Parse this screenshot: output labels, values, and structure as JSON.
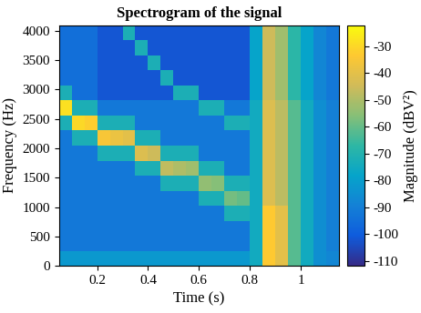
{
  "chart_data": {
    "type": "heatmap",
    "title": "Spectrogram of the signal",
    "x_label": "Time (s)",
    "y_label": "Frequency (Hz)",
    "x": [
      0.05,
      0.1,
      0.15,
      0.2,
      0.25,
      0.3,
      0.35,
      0.4,
      0.45,
      0.5,
      0.55,
      0.6,
      0.65,
      0.7,
      0.75,
      0.8,
      0.85,
      0.9,
      0.95,
      1.0,
      1.05,
      1.1,
      1.15
    ],
    "y": [
      0,
      256,
      512,
      768,
      1024,
      1280,
      1536,
      1792,
      2048,
      2304,
      2560,
      2816,
      3072,
      3328,
      3584,
      3840,
      4096
    ],
    "xlim": [
      0.05,
      1.15
    ],
    "ylim": [
      0,
      4096
    ],
    "xticks": [
      0.2,
      0.4,
      0.6,
      0.8,
      1
    ],
    "yticks": [
      0,
      500,
      1000,
      1500,
      2000,
      2500,
      3000,
      3500,
      4000
    ],
    "cells": [
      [
        -82,
        -82,
        -82,
        -82,
        -82,
        -82,
        -82,
        -82,
        -82,
        -82,
        -82,
        -82,
        -82,
        -82,
        -82,
        -75,
        -33,
        -40,
        -62,
        -75,
        -85,
        -88
      ],
      [
        -92,
        -92,
        -92,
        -92,
        -92,
        -92,
        -92,
        -92,
        -92,
        -92,
        -92,
        -92,
        -92,
        -92,
        -92,
        -75,
        -33,
        -40,
        -62,
        -75,
        -85,
        -90
      ],
      [
        -92,
        -92,
        -92,
        -92,
        -92,
        -92,
        -92,
        -92,
        -92,
        -92,
        -92,
        -92,
        -92,
        -92,
        -92,
        -75,
        -33,
        -40,
        -62,
        -75,
        -85,
        -90
      ],
      [
        -92,
        -92,
        -92,
        -92,
        -92,
        -92,
        -92,
        -92,
        -92,
        -92,
        -92,
        -92,
        -92,
        -72,
        -72,
        -75,
        -33,
        -40,
        -62,
        -75,
        -85,
        -90
      ],
      [
        -92,
        -92,
        -92,
        -92,
        -92,
        -92,
        -92,
        -92,
        -92,
        -92,
        -92,
        -72,
        -72,
        -58,
        -60,
        -75,
        -42,
        -48,
        -62,
        -75,
        -85,
        -90
      ],
      [
        -92,
        -92,
        -92,
        -92,
        -92,
        -92,
        -92,
        -92,
        -72,
        -72,
        -72,
        -54,
        -56,
        -72,
        -72,
        -75,
        -42,
        -48,
        -62,
        -75,
        -85,
        -90
      ],
      [
        -92,
        -92,
        -92,
        -92,
        -92,
        -92,
        -72,
        -72,
        -47,
        -50,
        -52,
        -72,
        -72,
        -92,
        -92,
        -75,
        -42,
        -48,
        -62,
        -75,
        -85,
        -90
      ],
      [
        -92,
        -92,
        -92,
        -72,
        -72,
        -72,
        -42,
        -45,
        -72,
        -72,
        -72,
        -92,
        -92,
        -92,
        -92,
        -75,
        -42,
        -48,
        -62,
        -75,
        -85,
        -90
      ],
      [
        -92,
        -72,
        -72,
        -35,
        -38,
        -40,
        -72,
        -72,
        -92,
        -92,
        -92,
        -92,
        -92,
        -92,
        -92,
        -75,
        -42,
        -48,
        -62,
        -75,
        -85,
        -90
      ],
      [
        -72,
        -30,
        -32,
        -72,
        -72,
        -72,
        -92,
        -92,
        -92,
        -92,
        -92,
        -92,
        -92,
        -72,
        -72,
        -75,
        -42,
        -48,
        -62,
        -75,
        -85,
        -90
      ],
      [
        -28,
        -72,
        -72,
        -92,
        -92,
        -92,
        -92,
        -92,
        -92,
        -92,
        -92,
        -72,
        -72,
        -92,
        -92,
        -75,
        -42,
        -48,
        -62,
        -75,
        -85,
        -90
      ],
      [
        -72,
        -95,
        -95,
        -102,
        -102,
        -102,
        -102,
        -102,
        -102,
        -72,
        -72,
        -102,
        -102,
        -102,
        -102,
        -78,
        -45,
        -52,
        -68,
        -78,
        -88,
        -92
      ],
      [
        -95,
        -95,
        -95,
        -102,
        -102,
        -102,
        -102,
        -102,
        -72,
        -102,
        -102,
        -102,
        -102,
        -102,
        -102,
        -78,
        -45,
        -52,
        -68,
        -78,
        -88,
        -92
      ],
      [
        -95,
        -95,
        -95,
        -102,
        -102,
        -102,
        -102,
        -72,
        -102,
        -102,
        -102,
        -102,
        -102,
        -102,
        -102,
        -78,
        -45,
        -52,
        -68,
        -78,
        -88,
        -92
      ],
      [
        -95,
        -95,
        -95,
        -102,
        -102,
        -102,
        -72,
        -102,
        -102,
        -102,
        -102,
        -102,
        -102,
        -102,
        -102,
        -78,
        -45,
        -52,
        -68,
        -78,
        -88,
        -92
      ],
      [
        -95,
        -95,
        -95,
        -102,
        -102,
        -72,
        -102,
        -102,
        -102,
        -102,
        -102,
        -102,
        -102,
        -102,
        -102,
        -78,
        -45,
        -52,
        -68,
        -78,
        -88,
        -92
      ]
    ],
    "colorbar": {
      "label": "Magnitude (dBV²)",
      "range": [
        -112,
        -22
      ],
      "ticks": [
        -110,
        -100,
        -90,
        -80,
        -70,
        -60,
        -50,
        -40,
        -30
      ]
    }
  }
}
